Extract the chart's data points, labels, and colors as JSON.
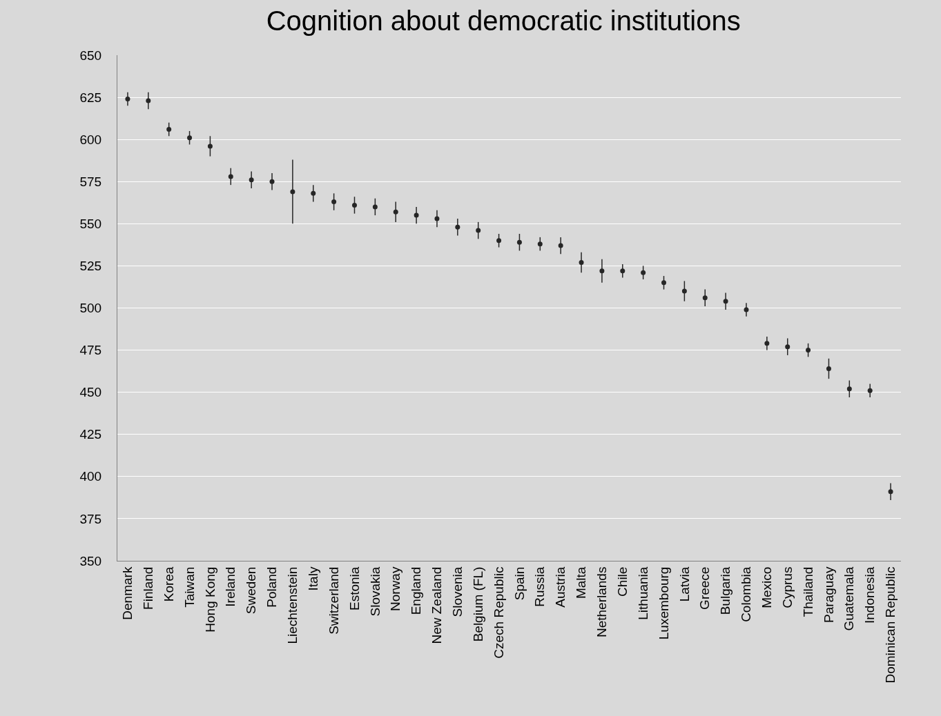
{
  "chart_data": {
    "type": "scatter",
    "title": "Cognition about democratic institutions",
    "categories": [
      "Denmark",
      "Finland",
      "Korea",
      "Taiwan",
      "Hong Kong",
      "Ireland",
      "Sweden",
      "Poland",
      "Liechtenstein",
      "Italy",
      "Switzerland",
      "Estonia",
      "Slovakia",
      "Norway",
      "England",
      "New Zealand",
      "Slovenia",
      "Belgium (FL)",
      "Czech Republic",
      "Spain",
      "Russia",
      "Austria",
      "Malta",
      "Netherlands",
      "Chile",
      "Lithuania",
      "Luxembourg",
      "Latvia",
      "Greece",
      "Bulgaria",
      "Colombia",
      "Mexico",
      "Cyprus",
      "Thailand",
      "Paraguay",
      "Guatemala",
      "Indonesia",
      "Dominican Republic"
    ],
    "values": [
      624,
      623,
      606,
      601,
      596,
      578,
      576,
      575,
      569,
      568,
      563,
      561,
      560,
      557,
      555,
      553,
      548,
      546,
      540,
      539,
      538,
      537,
      527,
      522,
      522,
      521,
      515,
      510,
      506,
      504,
      499,
      479,
      477,
      475,
      464,
      452,
      451,
      391
    ],
    "errors": [
      4,
      5,
      4,
      4,
      6,
      5,
      5,
      5,
      19,
      5,
      5,
      5,
      5,
      6,
      5,
      5,
      5,
      5,
      4,
      5,
      4,
      5,
      6,
      7,
      4,
      4,
      4,
      6,
      5,
      5,
      4,
      4,
      5,
      4,
      6,
      5,
      4,
      5
    ],
    "color": "#262626",
    "marker": "circle",
    "grid": "y",
    "ylim": [
      350,
      650
    ],
    "yticks": [
      350,
      375,
      400,
      425,
      450,
      475,
      500,
      525,
      550,
      575,
      600,
      625,
      650
    ]
  }
}
